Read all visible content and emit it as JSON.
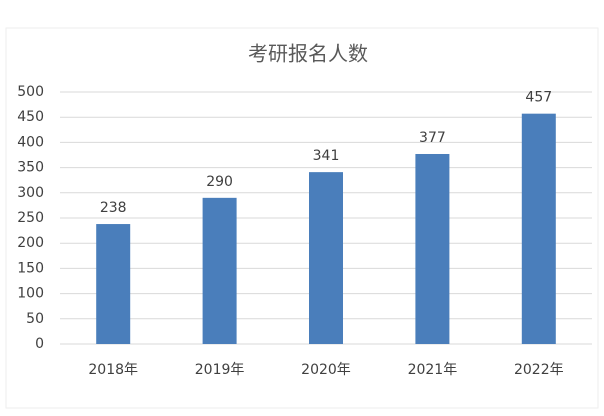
{
  "chart_data": {
    "type": "bar",
    "title": "考研报名人数",
    "categories": [
      "2018年",
      "2019年",
      "2020年",
      "2021年",
      "2022年"
    ],
    "values": [
      238,
      290,
      341,
      377,
      457
    ],
    "color": "#4a7ebb",
    "ylim": [
      0,
      500
    ],
    "yticks": [
      0,
      50,
      100,
      150,
      200,
      250,
      300,
      350,
      400,
      450,
      500
    ],
    "grid": true
  }
}
